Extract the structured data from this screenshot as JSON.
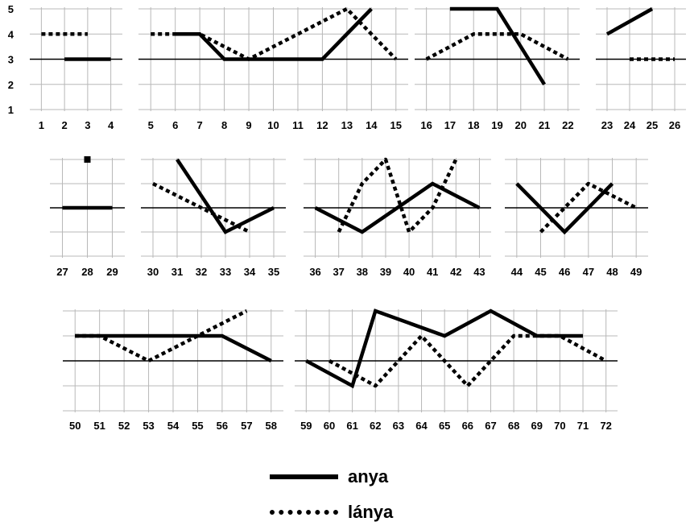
{
  "chart_data": {
    "type": "line",
    "ylim": [
      1,
      5
    ],
    "y_tick_labels": [
      "1",
      "2",
      "3",
      "4",
      "5"
    ],
    "baseline": 3,
    "grid": true,
    "legend_placement": "bottom-center",
    "legend": {
      "solid": "anya",
      "dotted": "lánya"
    },
    "series_styles": {
      "anya": "solid",
      "lánya": "dotted"
    },
    "panels": [
      {
        "x_range": [
          1,
          4
        ],
        "anya": [
          [
            2,
            3
          ],
          [
            3,
            3
          ],
          [
            4,
            3
          ]
        ],
        "lanya": [
          [
            1,
            4
          ],
          [
            2,
            4
          ],
          [
            3,
            4
          ]
        ]
      },
      {
        "x_range": [
          5,
          15
        ],
        "anya": [
          [
            6,
            4
          ],
          [
            7,
            4
          ],
          [
            8,
            3
          ],
          [
            9,
            3
          ],
          [
            10,
            3
          ],
          [
            11,
            3
          ],
          [
            12,
            3
          ],
          [
            14,
            5
          ]
        ],
        "lanya": [
          [
            5,
            4
          ],
          [
            6,
            4
          ],
          [
            7,
            4
          ],
          [
            8,
            3.5
          ],
          [
            9,
            3
          ],
          [
            10,
            3.5
          ],
          [
            11,
            4
          ],
          [
            12,
            4.5
          ],
          [
            13,
            5
          ],
          [
            14,
            4
          ],
          [
            15,
            3
          ]
        ]
      },
      {
        "x_range": [
          16,
          22
        ],
        "anya": [
          [
            17,
            5
          ],
          [
            18,
            5
          ],
          [
            19,
            5
          ],
          [
            21,
            2
          ]
        ],
        "lanya": [
          [
            16,
            3
          ],
          [
            17,
            3.5
          ],
          [
            18,
            4
          ],
          [
            19,
            4
          ],
          [
            20,
            4
          ],
          [
            21,
            3.5
          ],
          [
            22,
            3
          ]
        ]
      },
      {
        "x_range": [
          23,
          26
        ],
        "anya": [
          [
            23,
            4
          ],
          [
            25,
            5
          ]
        ],
        "lanya": [
          [
            24,
            3
          ],
          [
            25,
            3
          ],
          [
            26,
            3
          ]
        ]
      },
      {
        "x_range": [
          27,
          29
        ],
        "anya": [
          [
            27,
            3
          ],
          [
            28,
            3
          ],
          [
            29,
            3
          ]
        ],
        "lanya": [],
        "lanya_points": [
          [
            28,
            5
          ]
        ]
      },
      {
        "x_range": [
          30,
          35
        ],
        "anya": [
          [
            31,
            5
          ],
          [
            33,
            2
          ],
          [
            35,
            3
          ]
        ],
        "lanya": [
          [
            30,
            4
          ],
          [
            31,
            3.5
          ],
          [
            32,
            3
          ],
          [
            33,
            2.5
          ],
          [
            34,
            2
          ]
        ]
      },
      {
        "x_range": [
          36,
          43
        ],
        "anya": [
          [
            36,
            3
          ],
          [
            38,
            2
          ],
          [
            41,
            4
          ],
          [
            43,
            3
          ]
        ],
        "lanya": [
          [
            37,
            2
          ],
          [
            38,
            4
          ],
          [
            39,
            5
          ],
          [
            40,
            2
          ],
          [
            41,
            3
          ],
          [
            42,
            5
          ]
        ]
      },
      {
        "x_range": [
          44,
          49
        ],
        "anya": [
          [
            44,
            4
          ],
          [
            46,
            2
          ],
          [
            48,
            4
          ]
        ],
        "lanya": [
          [
            45,
            2
          ],
          [
            46,
            3
          ],
          [
            47,
            4
          ],
          [
            48,
            3.5
          ],
          [
            49,
            3
          ]
        ]
      },
      {
        "x_range": [
          50,
          58
        ],
        "anya": [
          [
            50,
            4
          ],
          [
            51,
            4
          ],
          [
            52,
            4
          ],
          [
            53,
            4
          ],
          [
            54,
            4
          ],
          [
            55,
            4
          ],
          [
            56,
            4
          ],
          [
            58,
            3
          ]
        ],
        "lanya": [
          [
            50,
            4
          ],
          [
            51,
            4
          ],
          [
            53,
            3
          ],
          [
            55,
            4
          ],
          [
            57,
            5
          ]
        ]
      },
      {
        "x_range": [
          59,
          72
        ],
        "anya": [
          [
            59,
            3
          ],
          [
            61,
            2
          ],
          [
            62,
            5
          ],
          [
            65,
            4
          ],
          [
            67,
            5
          ],
          [
            69,
            4
          ],
          [
            70,
            4
          ],
          [
            71,
            4
          ]
        ],
        "lanya": [
          [
            60,
            3
          ],
          [
            62,
            2
          ],
          [
            64,
            4
          ],
          [
            66,
            2
          ],
          [
            68,
            4
          ],
          [
            69,
            4
          ],
          [
            70,
            4
          ],
          [
            72,
            3
          ]
        ]
      }
    ]
  }
}
